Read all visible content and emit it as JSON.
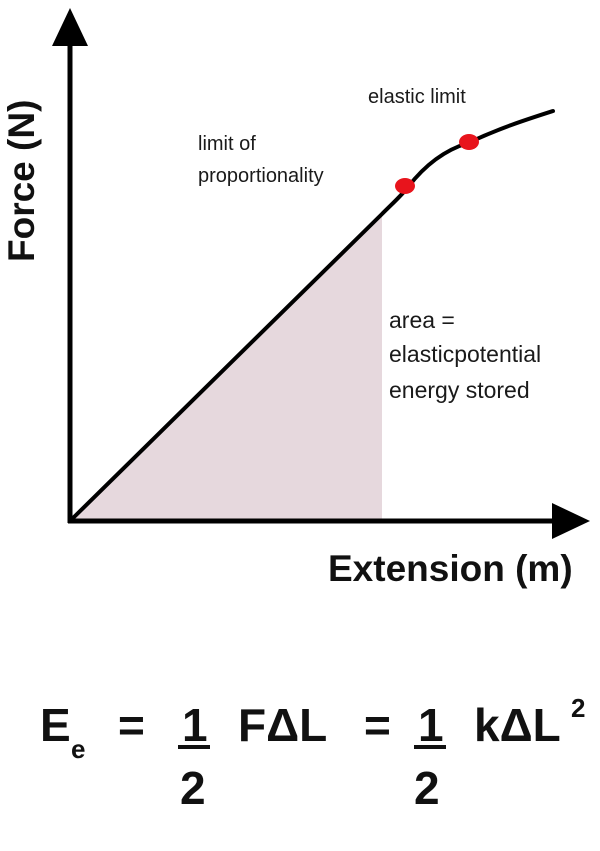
{
  "axes": {
    "x_title": "Extension (m)",
    "y_title": "Force (N)"
  },
  "labels": {
    "elastic_limit": "elastic limit",
    "limit_line1": "limit of",
    "limit_line2": "proportionality",
    "area_line1": "area =",
    "area_line2": "elasticpotential",
    "area_line3": "energy stored"
  },
  "equation": {
    "lhs": "E",
    "lhs_subscript": "e",
    "equals": "=",
    "one": "1",
    "two": "2",
    "term1": "FΔL",
    "term2": "kΔL",
    "exponent": "2"
  },
  "colors": {
    "shaded_area": "#e6d8dd",
    "marker": "#e8141c",
    "line": "#000000"
  }
}
